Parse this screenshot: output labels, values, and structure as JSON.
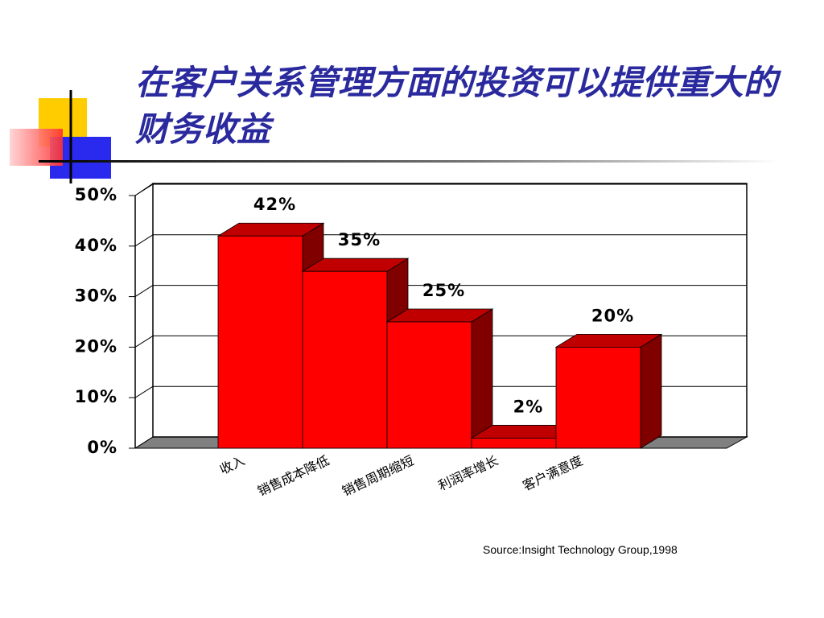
{
  "chart_data": {
    "type": "bar3d",
    "title": "在客户关系管理方面的投资可以提供重大的财务收益",
    "categories": [
      "收入",
      "销售成本降低",
      "销售周期缩短",
      "利润率增长",
      "客户满意度"
    ],
    "values": [
      42,
      35,
      25,
      2,
      20
    ],
    "value_labels": [
      "42%",
      "35%",
      "25%",
      "2%",
      "20%"
    ],
    "color": "#ff0000",
    "ylim": [
      0,
      50
    ],
    "yticks": [
      {
        "value": 0,
        "label": "0%"
      },
      {
        "value": 10,
        "label": "10%"
      },
      {
        "value": 20,
        "label": "20%"
      },
      {
        "value": 30,
        "label": "30%"
      },
      {
        "value": 40,
        "label": "40%"
      },
      {
        "value": 50,
        "label": "50%"
      }
    ],
    "grid": true,
    "source": "Source:Insight Technology Group,1998"
  }
}
